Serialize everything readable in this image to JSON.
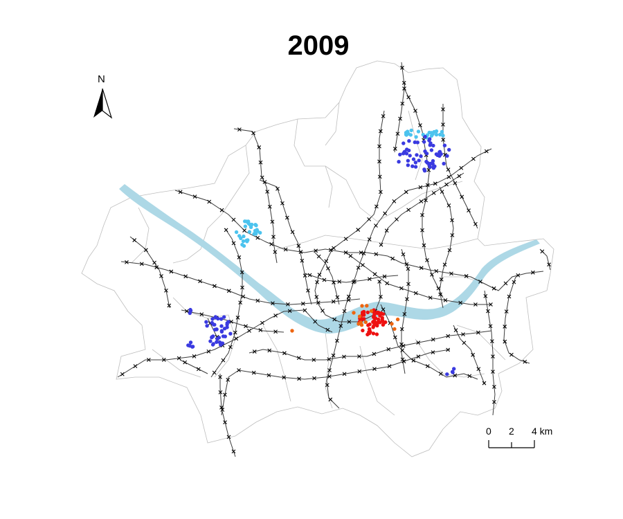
{
  "title": "2009",
  "north_arrow": {
    "label": "N",
    "icon": "north-arrow-icon"
  },
  "scale_bar": {
    "ticks": [
      "0",
      "2",
      "4 km"
    ]
  },
  "colors": {
    "river": "#add8e6",
    "district_boundary": "#bdbdbd",
    "rail_line": "#3a3a3a",
    "station_marker": "#000000",
    "cluster_blue": "#3a3ae0",
    "cluster_light_blue": "#4cc3ee",
    "cluster_red": "#ee1111",
    "cluster_orange": "#ee6611"
  }
}
